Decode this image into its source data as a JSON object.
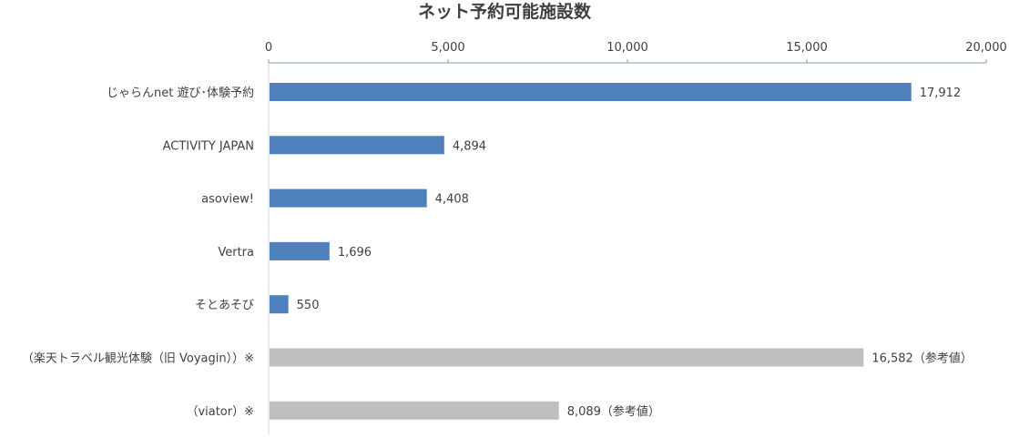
{
  "chart_data": {
    "type": "bar",
    "orientation": "horizontal",
    "title": "ネット予約可能施設数",
    "xlabel": "",
    "ylabel": "",
    "xlim": [
      0,
      20000
    ],
    "ticks": [
      "0",
      "5,000",
      "10,000",
      "15,000",
      "20,000"
    ],
    "tick_values": [
      0,
      5000,
      10000,
      15000,
      20000
    ],
    "grid": false,
    "legend": "none",
    "categories": [
      "じゃらんnet 遊び･体験予約",
      "ACTIVITY JAPAN",
      "asoview!",
      "Vertra",
      "そとあそび",
      "（楽天トラベル観光体験（旧 Voyagin））※",
      "（viator）※"
    ],
    "values": [
      17912,
      4894,
      4408,
      1696,
      550,
      16582,
      8089
    ],
    "value_labels": [
      "17,912",
      "4,894",
      "4,408",
      "1,696",
      "550",
      "16,582（参考値）",
      "8,089（参考値）"
    ],
    "bar_colors": [
      "#4f81bd",
      "#4f81bd",
      "#4f81bd",
      "#4f81bd",
      "#4f81bd",
      "#bfbfbf",
      "#bfbfbf"
    ],
    "axis_color": "#7f9fb5"
  }
}
